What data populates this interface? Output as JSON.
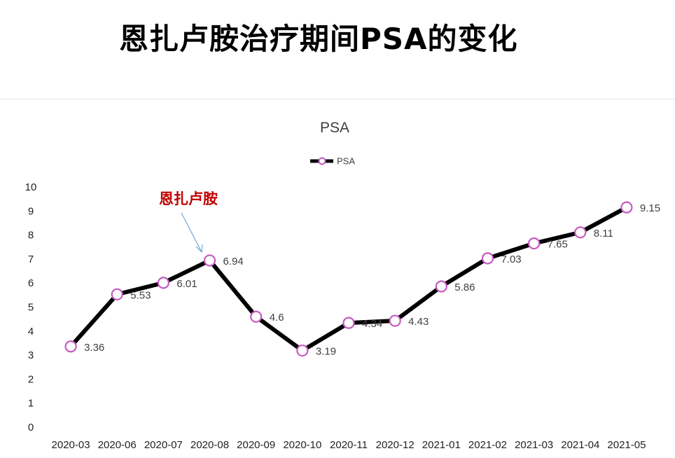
{
  "page": {
    "title": "恩扎卢胺治疗期间PSA的变化"
  },
  "chart_data": {
    "type": "line",
    "title": "PSA",
    "xlabel": "",
    "ylabel": "",
    "categories": [
      "2020-03",
      "2020-06",
      "2020-07",
      "2020-08",
      "2020-09",
      "2020-10",
      "2020-11",
      "2020-12",
      "2021-01",
      "2021-02",
      "2021-03",
      "2021-04",
      "2021-05"
    ],
    "series": [
      {
        "name": "PSA",
        "values": [
          3.36,
          5.53,
          6.01,
          6.94,
          4.6,
          3.19,
          4.34,
          4.43,
          5.86,
          7.03,
          7.65,
          8.11,
          9.15
        ]
      }
    ],
    "ylim": [
      0,
      10
    ],
    "yticks": [
      0,
      1,
      2,
      3,
      4,
      5,
      6,
      7,
      8,
      9,
      10
    ],
    "grid": false,
    "legend_position": "top",
    "line_color": "#000000",
    "marker_color": "#c55ac0",
    "annotation": {
      "text": "恩扎卢胺",
      "target_category": "2020-08",
      "color": "#c00000",
      "arrow_color": "#5b9bd5"
    }
  }
}
